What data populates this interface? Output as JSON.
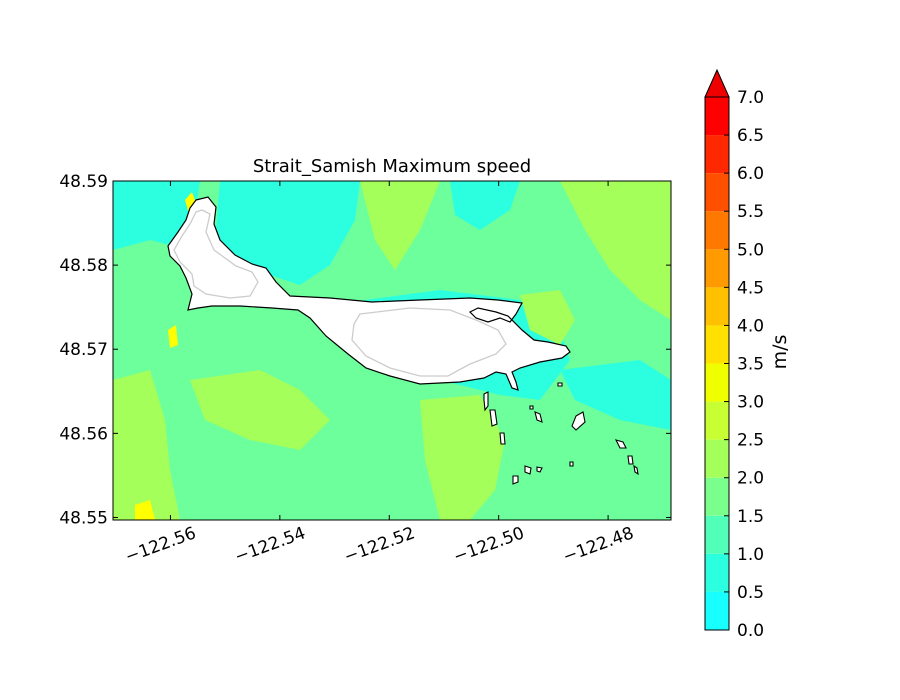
{
  "chart_data": {
    "type": "heatmap",
    "title": "Strait_Samish Maximum speed",
    "xlabel": "",
    "ylabel": "",
    "x_ticks": [
      -122.56,
      -122.54,
      -122.52,
      -122.5,
      -122.48
    ],
    "x_tick_labels": [
      "−122.56",
      "−122.54",
      "−122.52",
      "−122.50",
      "−122.48"
    ],
    "y_ticks": [
      48.55,
      48.56,
      48.57,
      48.58,
      48.59
    ],
    "y_tick_labels": [
      "48.55",
      "48.56",
      "48.57",
      "48.58",
      "48.59"
    ],
    "xlim": [
      -122.5705,
      -122.4685
    ],
    "ylim": [
      48.5497,
      48.59
    ],
    "colorbar": {
      "label": "m/s",
      "extend": "max",
      "levels": [
        0.0,
        0.5,
        1.0,
        1.5,
        2.0,
        2.5,
        3.0,
        3.5,
        4.0,
        4.5,
        5.0,
        5.5,
        6.0,
        6.5,
        7.0
      ],
      "tick_labels": [
        "0.0",
        "0.5",
        "1.0",
        "1.5",
        "2.0",
        "2.5",
        "3.0",
        "3.5",
        "4.0",
        "4.5",
        "5.0",
        "5.5",
        "6.0",
        "6.5",
        "7.0"
      ],
      "colors": [
        "#18ffff",
        "#2bffe0",
        "#52ffb8",
        "#7bff8c",
        "#a4ff5a",
        "#c8ff33",
        "#f0ff00",
        "#ffe000",
        "#ffc000",
        "#ff9a00",
        "#ff7800",
        "#ff5000",
        "#ff2800",
        "#ff0000"
      ],
      "extend_color": "#ee0000"
    },
    "field_colors": {
      "base": "#6dff9c",
      "low": "#2bffe0",
      "high": "#a4ff5a",
      "peak": "#ffff00"
    }
  }
}
